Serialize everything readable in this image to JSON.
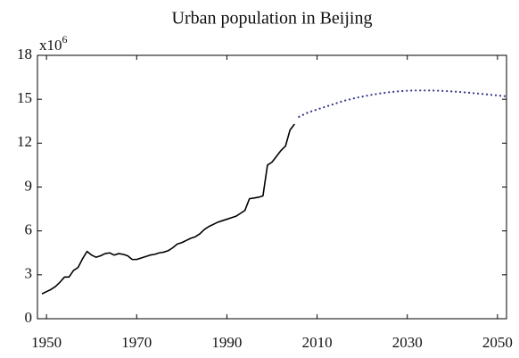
{
  "chart_data": {
    "type": "line",
    "title": "Urban population in Beijing",
    "y_multiplier": {
      "base": "x10",
      "exponent": "6"
    },
    "xlim": [
      1948,
      2052
    ],
    "xticks": [
      1950,
      1970,
      1990,
      2010,
      2030,
      2050
    ],
    "ylim": [
      0,
      18
    ],
    "yticks": [
      0,
      3,
      6,
      9,
      12,
      15,
      18
    ],
    "grid": false,
    "series": [
      {
        "color": "#000000",
        "linestyle": "solid",
        "x": [
          1949,
          1950,
          1951,
          1952,
          1953,
          1954,
          1955,
          1956,
          1957,
          1958,
          1959,
          1960,
          1961,
          1962,
          1963,
          1964,
          1965,
          1966,
          1967,
          1968,
          1969,
          1970,
          1971,
          1972,
          1973,
          1974,
          1975,
          1976,
          1977,
          1978,
          1979,
          1980,
          1981,
          1982,
          1983,
          1984,
          1985,
          1986,
          1987,
          1988,
          1989,
          1990,
          1991,
          1992,
          1993,
          1994,
          1995,
          1996,
          1997,
          1998,
          1999,
          2000,
          2001,
          2002,
          2003,
          2004,
          2005
        ],
        "values": [
          1.7,
          1.85,
          2.0,
          2.2,
          2.5,
          2.85,
          2.85,
          3.3,
          3.5,
          4.1,
          4.6,
          4.35,
          4.2,
          4.3,
          4.45,
          4.5,
          4.35,
          4.45,
          4.4,
          4.3,
          4.05,
          4.05,
          4.15,
          4.25,
          4.35,
          4.4,
          4.5,
          4.55,
          4.65,
          4.85,
          5.1,
          5.2,
          5.35,
          5.5,
          5.6,
          5.8,
          6.1,
          6.3,
          6.45,
          6.6,
          6.7,
          6.8,
          6.9,
          7.0,
          7.2,
          7.4,
          8.2,
          8.25,
          8.3,
          8.4,
          10.5,
          10.7,
          11.1,
          11.5,
          11.8,
          12.9,
          13.3
        ]
      },
      {
        "color": "#3a3a8c",
        "linestyle": "dotted",
        "x": [
          2006,
          2007,
          2008,
          2009,
          2010,
          2011,
          2012,
          2013,
          2014,
          2015,
          2016,
          2017,
          2018,
          2019,
          2020,
          2021,
          2022,
          2023,
          2024,
          2025,
          2026,
          2027,
          2028,
          2029,
          2030,
          2031,
          2032,
          2033,
          2034,
          2035,
          2036,
          2037,
          2038,
          2039,
          2040,
          2041,
          2042,
          2043,
          2044,
          2045,
          2046,
          2047,
          2048,
          2049,
          2050,
          2051,
          2052
        ],
        "values": [
          13.8,
          13.95,
          14.1,
          14.2,
          14.3,
          14.4,
          14.5,
          14.6,
          14.7,
          14.8,
          14.9,
          14.97,
          15.05,
          15.12,
          15.18,
          15.24,
          15.3,
          15.35,
          15.4,
          15.44,
          15.48,
          15.51,
          15.54,
          15.56,
          15.58,
          15.59,
          15.6,
          15.6,
          15.6,
          15.6,
          15.59,
          15.58,
          15.57,
          15.55,
          15.53,
          15.51,
          15.49,
          15.46,
          15.44,
          15.41,
          15.38,
          15.35,
          15.32,
          15.29,
          15.26,
          15.23,
          15.2
        ]
      }
    ]
  }
}
